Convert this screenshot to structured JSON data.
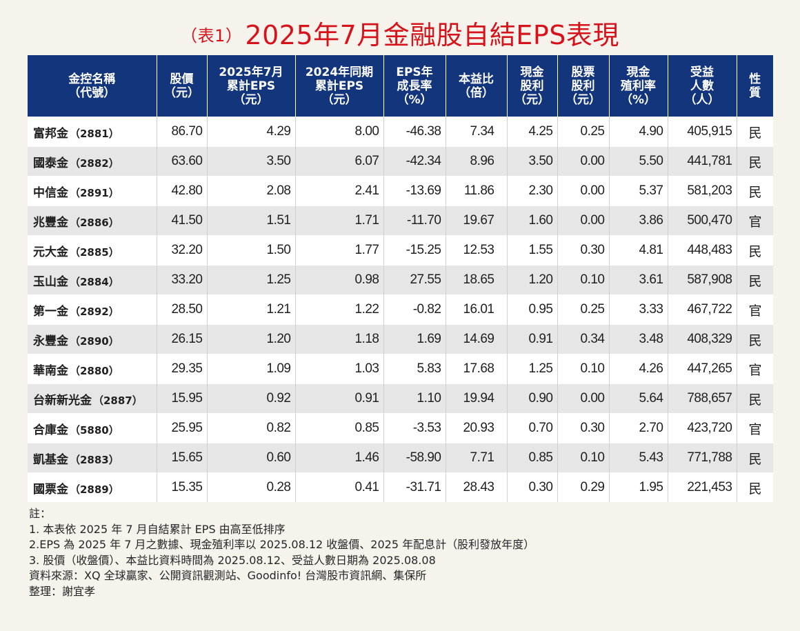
{
  "title": {
    "prefix": "（表1）",
    "main": "2025年7月金融股自結EPS表現"
  },
  "colors": {
    "title": "#d6131b",
    "header_bg": "#13357c",
    "header_text": "#ffffff",
    "row_alt": "#e6e6e6",
    "background": "#f6f3ed"
  },
  "headers": [
    "金控名稱\n（代號）",
    "股價\n（元）",
    "2025年7月\n累計EPS\n（元）",
    "2024年同期\n累計EPS\n（元）",
    "EPS年\n成長率\n（%）",
    "本益比\n（倍）",
    "現金\n股利\n（元）",
    "股票\n股利\n（元）",
    "現金\n殖利率\n（%）",
    "受益\n人數\n（人）",
    "性\n質"
  ],
  "rows": [
    {
      "name": "富邦金",
      "code": "（2881）",
      "price": "86.70",
      "eps2025": "4.29",
      "eps2024": "8.00",
      "growth": "-46.38",
      "pe": "7.34",
      "cash_div": "4.25",
      "stock_div": "0.25",
      "yield": "4.90",
      "holders": "405,915",
      "type": "民"
    },
    {
      "name": "國泰金",
      "code": "（2882）",
      "price": "63.60",
      "eps2025": "3.50",
      "eps2024": "6.07",
      "growth": "-42.34",
      "pe": "8.96",
      "cash_div": "3.50",
      "stock_div": "0.00",
      "yield": "5.50",
      "holders": "441,781",
      "type": "民"
    },
    {
      "name": "中信金",
      "code": "（2891）",
      "price": "42.80",
      "eps2025": "2.08",
      "eps2024": "2.41",
      "growth": "-13.69",
      "pe": "11.86",
      "cash_div": "2.30",
      "stock_div": "0.00",
      "yield": "5.37",
      "holders": "581,203",
      "type": "民"
    },
    {
      "name": "兆豐金",
      "code": "（2886）",
      "price": "41.50",
      "eps2025": "1.51",
      "eps2024": "1.71",
      "growth": "-11.70",
      "pe": "19.67",
      "cash_div": "1.60",
      "stock_div": "0.00",
      "yield": "3.86",
      "holders": "500,470",
      "type": "官"
    },
    {
      "name": "元大金",
      "code": "（2885）",
      "price": "32.20",
      "eps2025": "1.50",
      "eps2024": "1.77",
      "growth": "-15.25",
      "pe": "12.53",
      "cash_div": "1.55",
      "stock_div": "0.30",
      "yield": "4.81",
      "holders": "448,483",
      "type": "民"
    },
    {
      "name": "玉山金",
      "code": "（2884）",
      "price": "33.20",
      "eps2025": "1.25",
      "eps2024": "0.98",
      "growth": "27.55",
      "pe": "18.65",
      "cash_div": "1.20",
      "stock_div": "0.10",
      "yield": "3.61",
      "holders": "587,908",
      "type": "民"
    },
    {
      "name": "第一金",
      "code": "（2892）",
      "price": "28.50",
      "eps2025": "1.21",
      "eps2024": "1.22",
      "growth": "-0.82",
      "pe": "16.01",
      "cash_div": "0.95",
      "stock_div": "0.25",
      "yield": "3.33",
      "holders": "467,722",
      "type": "官"
    },
    {
      "name": "永豐金",
      "code": "（2890）",
      "price": "26.15",
      "eps2025": "1.20",
      "eps2024": "1.18",
      "growth": "1.69",
      "pe": "14.69",
      "cash_div": "0.91",
      "stock_div": "0.34",
      "yield": "3.48",
      "holders": "408,329",
      "type": "民"
    },
    {
      "name": "華南金",
      "code": "（2880）",
      "price": "29.35",
      "eps2025": "1.09",
      "eps2024": "1.03",
      "growth": "5.83",
      "pe": "17.68",
      "cash_div": "1.25",
      "stock_div": "0.10",
      "yield": "4.26",
      "holders": "447,265",
      "type": "官"
    },
    {
      "name": "台新新光金",
      "code": "（2887）",
      "price": "15.95",
      "eps2025": "0.92",
      "eps2024": "0.91",
      "growth": "1.10",
      "pe": "19.94",
      "cash_div": "0.90",
      "stock_div": "0.00",
      "yield": "5.64",
      "holders": "788,657",
      "type": "民"
    },
    {
      "name": "合庫金",
      "code": "（5880）",
      "price": "25.95",
      "eps2025": "0.82",
      "eps2024": "0.85",
      "growth": "-3.53",
      "pe": "20.93",
      "cash_div": "0.70",
      "stock_div": "0.30",
      "yield": "2.70",
      "holders": "423,720",
      "type": "官"
    },
    {
      "name": "凱基金",
      "code": "（2883）",
      "price": "15.65",
      "eps2025": "0.60",
      "eps2024": "1.46",
      "growth": "-58.90",
      "pe": "7.71",
      "cash_div": "0.85",
      "stock_div": "0.10",
      "yield": "5.43",
      "holders": "771,788",
      "type": "民"
    },
    {
      "name": "國票金",
      "code": "（2889）",
      "price": "15.35",
      "eps2025": "0.28",
      "eps2024": "0.41",
      "growth": "-31.71",
      "pe": "28.43",
      "cash_div": "0.30",
      "stock_div": "0.29",
      "yield": "1.95",
      "holders": "221,453",
      "type": "民"
    }
  ],
  "notes": [
    "註：",
    "1. 本表依 2025 年 7 月自結累計 EPS 由高至低排序",
    "2.EPS 為 2025 年 7 月之數據、現金殖利率以 2025.08.12 收盤價、2025 年配息計（股利發放年度）",
    "3. 股價（收盤價）、本益比資料時間為 2025.08.12、受益人數日期為 2025.08.08",
    "資料來源：XQ 全球贏家、公開資訊觀測站、Goodinfo! 台灣股市資訊網、集保所",
    "整理：謝宜孝"
  ]
}
